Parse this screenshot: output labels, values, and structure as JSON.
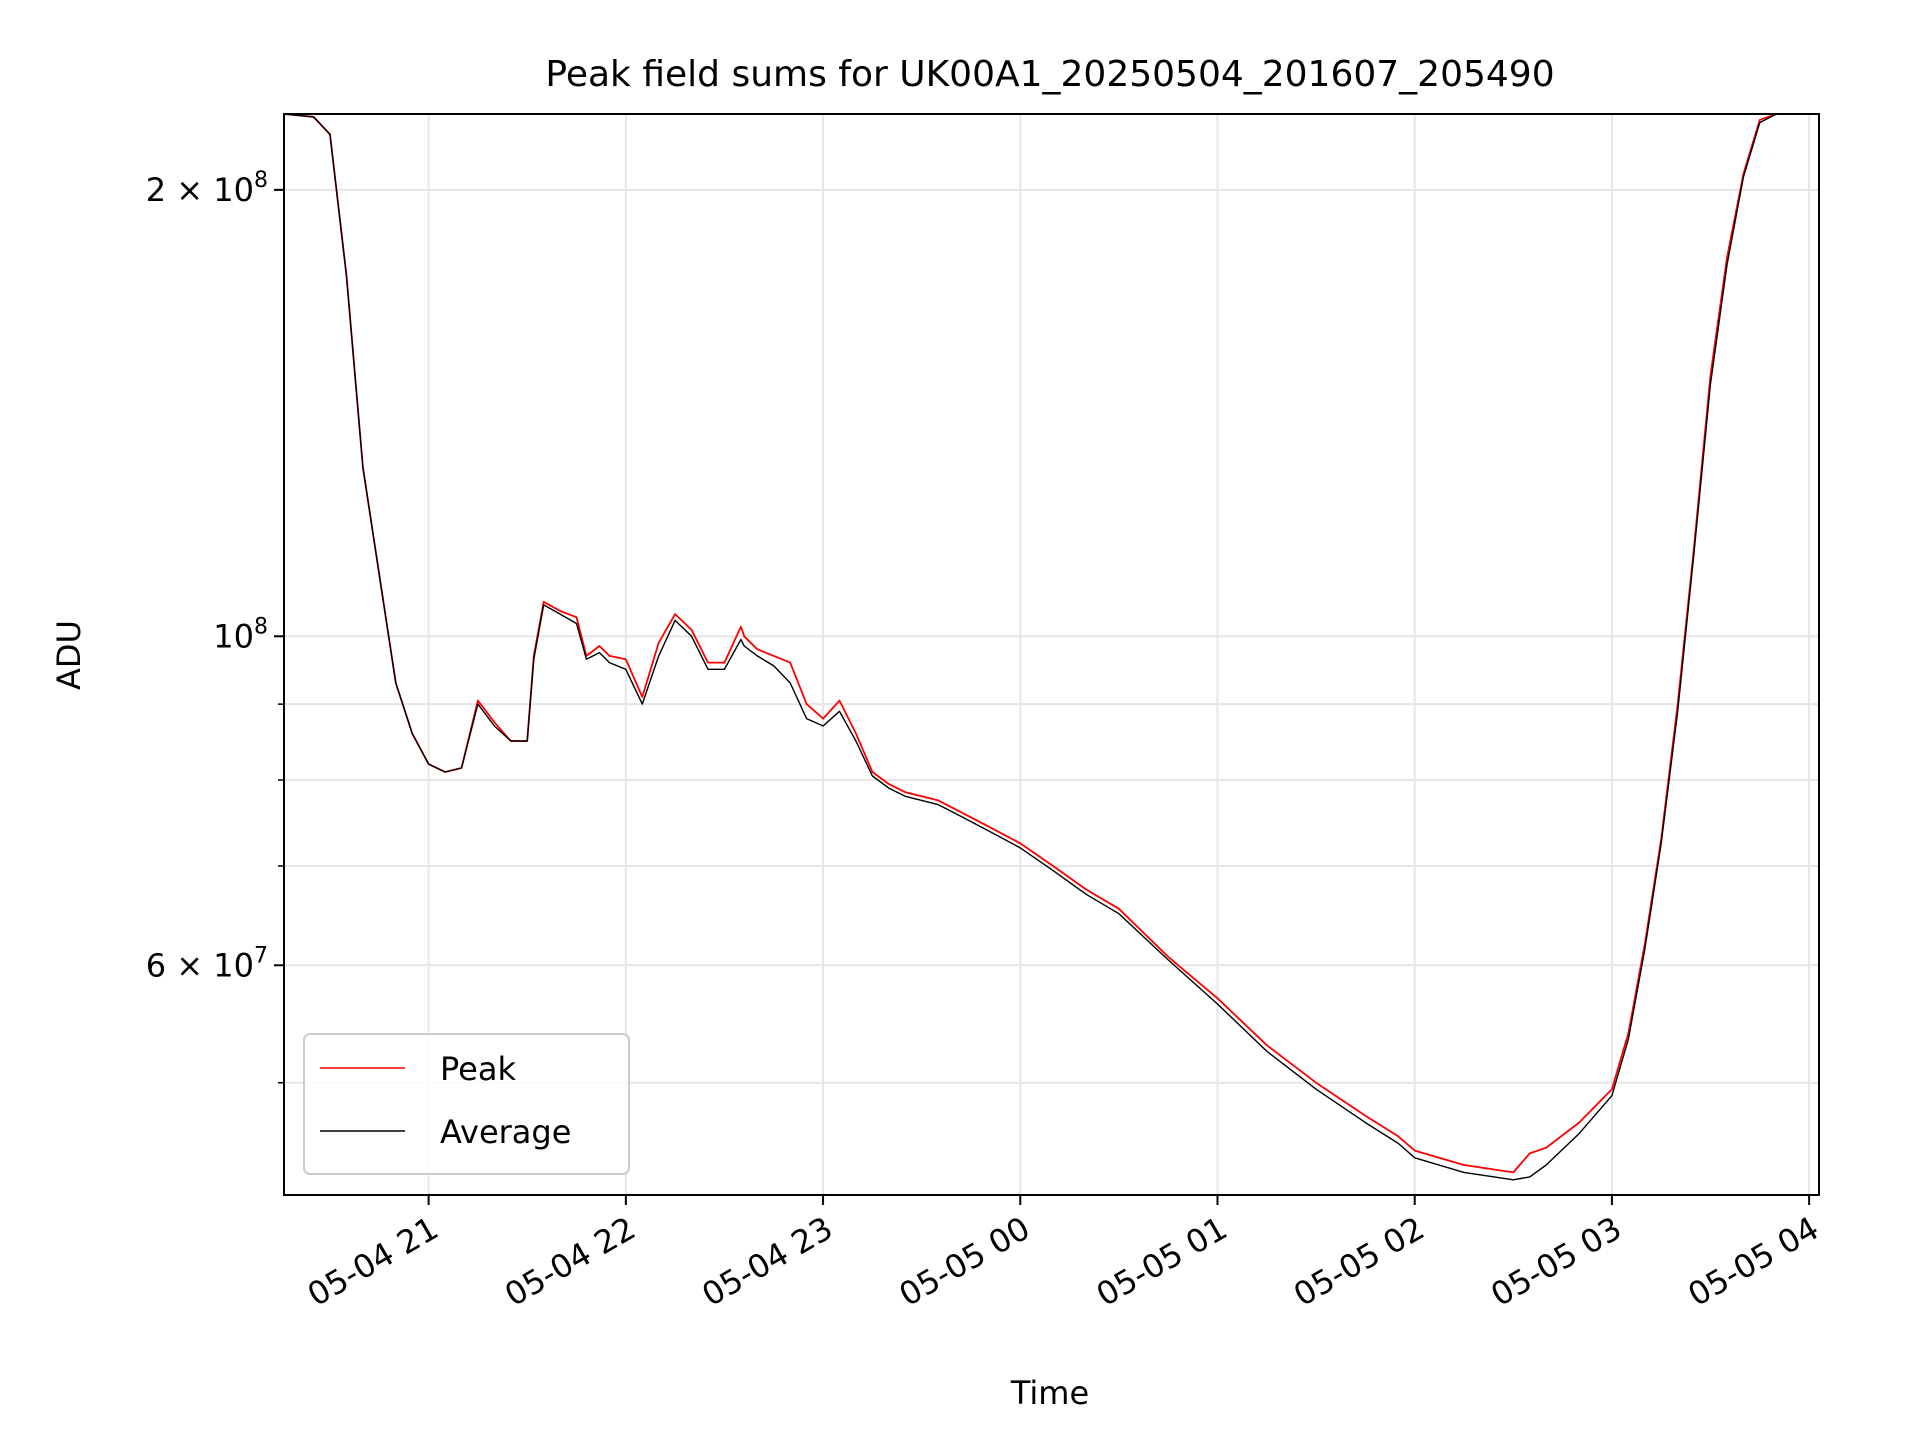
{
  "chart_data": {
    "type": "line",
    "title": "Peak field sums for UK00A1_20250504_201607_205490",
    "xlabel": "Time",
    "ylabel": "ADU",
    "y_scale": "log",
    "xlim": [
      "2025-05-04 20:16",
      "2025-05-05 04:03"
    ],
    "ylim": [
      42000000,
      225000000
    ],
    "grid": true,
    "legend_position": "lower-left",
    "x_ticks": [
      {
        "t": "2025-05-04 21:00",
        "label": "05-04 21"
      },
      {
        "t": "2025-05-04 22:00",
        "label": "05-04 22"
      },
      {
        "t": "2025-05-04 23:00",
        "label": "05-04 23"
      },
      {
        "t": "2025-05-05 00:00",
        "label": "05-05 00"
      },
      {
        "t": "2025-05-05 01:00",
        "label": "05-05 01"
      },
      {
        "t": "2025-05-05 02:00",
        "label": "05-05 02"
      },
      {
        "t": "2025-05-05 03:00",
        "label": "05-05 03"
      },
      {
        "t": "2025-05-05 04:00",
        "label": "05-05 04"
      }
    ],
    "y_major_ticks": [
      {
        "value": 60000000,
        "base": "6 × 10",
        "exp": "7"
      },
      {
        "value": 100000000,
        "base": "10",
        "exp": "8"
      },
      {
        "value": 200000000,
        "base": "2 × 10",
        "exp": "8"
      }
    ],
    "y_minor_grid": [
      50000000,
      70000000,
      80000000,
      90000000
    ],
    "series": [
      {
        "name": "Peak",
        "color": "#ff0000",
        "x": [
          "2025-05-04 20:16",
          "2025-05-04 20:25",
          "2025-05-04 20:30",
          "2025-05-04 20:35",
          "2025-05-04 20:40",
          "2025-05-04 20:45",
          "2025-05-04 20:50",
          "2025-05-04 20:55",
          "2025-05-04 21:00",
          "2025-05-04 21:05",
          "2025-05-04 21:10",
          "2025-05-04 21:15",
          "2025-05-04 21:20",
          "2025-05-04 21:25",
          "2025-05-04 21:30",
          "2025-05-04 21:32",
          "2025-05-04 21:35",
          "2025-05-04 21:40",
          "2025-05-04 21:45",
          "2025-05-04 21:48",
          "2025-05-04 21:52",
          "2025-05-04 21:55",
          "2025-05-04 22:00",
          "2025-05-04 22:05",
          "2025-05-04 22:10",
          "2025-05-04 22:15",
          "2025-05-04 22:20",
          "2025-05-04 22:25",
          "2025-05-04 22:30",
          "2025-05-04 22:35",
          "2025-05-04 22:36",
          "2025-05-04 22:40",
          "2025-05-04 22:45",
          "2025-05-04 22:50",
          "2025-05-04 22:55",
          "2025-05-04 23:00",
          "2025-05-04 23:05",
          "2025-05-04 23:10",
          "2025-05-04 23:15",
          "2025-05-04 23:20",
          "2025-05-04 23:25",
          "2025-05-04 23:30",
          "2025-05-04 23:35",
          "2025-05-04 23:40",
          "2025-05-04 23:50",
          "2025-05-05 00:00",
          "2025-05-05 00:10",
          "2025-05-05 00:20",
          "2025-05-05 00:30",
          "2025-05-05 00:45",
          "2025-05-05 01:00",
          "2025-05-05 01:15",
          "2025-05-05 01:30",
          "2025-05-05 01:45",
          "2025-05-05 01:55",
          "2025-05-05 02:00",
          "2025-05-05 02:15",
          "2025-05-05 02:30",
          "2025-05-05 02:35",
          "2025-05-05 02:40",
          "2025-05-05 02:50",
          "2025-05-05 03:00",
          "2025-05-05 03:05",
          "2025-05-05 03:10",
          "2025-05-05 03:15",
          "2025-05-05 03:20",
          "2025-05-05 03:25",
          "2025-05-05 03:30",
          "2025-05-05 03:35",
          "2025-05-05 03:40",
          "2025-05-05 03:45",
          "2025-05-05 03:50",
          "2025-05-05 04:03"
        ],
        "y": [
          225000000,
          224000000,
          218000000,
          175000000,
          130000000,
          110000000,
          93000000,
          86000000,
          82000000,
          81000000,
          81500000,
          90500000,
          87500000,
          85000000,
          85000000,
          97000000,
          105500000,
          104000000,
          103000000,
          97000000,
          98500000,
          97000000,
          96500000,
          91000000,
          99000000,
          103500000,
          101000000,
          96000000,
          96000000,
          101500000,
          100000000,
          98000000,
          97000000,
          96000000,
          90000000,
          88000000,
          90500000,
          86000000,
          81000000,
          79500000,
          78500000,
          78000000,
          77500000,
          76500000,
          74500000,
          72500000,
          70000000,
          67500000,
          65500000,
          60800000,
          57000000,
          53000000,
          50000000,
          47500000,
          46000000,
          45000000,
          44000000,
          43500000,
          44800000,
          45200000,
          47000000,
          49500000,
          54000000,
          62000000,
          73000000,
          90000000,
          115000000,
          150000000,
          180000000,
          205000000,
          223000000,
          225000000,
          225000000
        ]
      },
      {
        "name": "Average",
        "color": "#000000",
        "x": [
          "2025-05-04 20:16",
          "2025-05-04 20:25",
          "2025-05-04 20:30",
          "2025-05-04 20:35",
          "2025-05-04 20:40",
          "2025-05-04 20:45",
          "2025-05-04 20:50",
          "2025-05-04 20:55",
          "2025-05-04 21:00",
          "2025-05-04 21:05",
          "2025-05-04 21:10",
          "2025-05-04 21:15",
          "2025-05-04 21:20",
          "2025-05-04 21:25",
          "2025-05-04 21:30",
          "2025-05-04 21:32",
          "2025-05-04 21:35",
          "2025-05-04 21:40",
          "2025-05-04 21:45",
          "2025-05-04 21:48",
          "2025-05-04 21:52",
          "2025-05-04 21:55",
          "2025-05-04 22:00",
          "2025-05-04 22:05",
          "2025-05-04 22:10",
          "2025-05-04 22:15",
          "2025-05-04 22:20",
          "2025-05-04 22:25",
          "2025-05-04 22:30",
          "2025-05-04 22:35",
          "2025-05-04 22:36",
          "2025-05-04 22:40",
          "2025-05-04 22:45",
          "2025-05-04 22:50",
          "2025-05-04 22:55",
          "2025-05-04 23:00",
          "2025-05-04 23:05",
          "2025-05-04 23:10",
          "2025-05-04 23:15",
          "2025-05-04 23:20",
          "2025-05-04 23:25",
          "2025-05-04 23:30",
          "2025-05-04 23:35",
          "2025-05-04 23:40",
          "2025-05-04 23:50",
          "2025-05-05 00:00",
          "2025-05-05 00:10",
          "2025-05-05 00:20",
          "2025-05-05 00:30",
          "2025-05-05 00:45",
          "2025-05-05 01:00",
          "2025-05-05 01:15",
          "2025-05-05 01:30",
          "2025-05-05 01:45",
          "2025-05-05 01:55",
          "2025-05-05 02:00",
          "2025-05-05 02:15",
          "2025-05-05 02:30",
          "2025-05-05 02:35",
          "2025-05-05 02:40",
          "2025-05-05 02:50",
          "2025-05-05 03:00",
          "2025-05-05 03:05",
          "2025-05-05 03:10",
          "2025-05-05 03:15",
          "2025-05-05 03:20",
          "2025-05-05 03:25",
          "2025-05-05 03:30",
          "2025-05-05 03:35",
          "2025-05-05 03:40",
          "2025-05-05 03:45",
          "2025-05-05 03:50",
          "2025-05-05 04:03"
        ],
        "y": [
          225000000,
          224000000,
          218000000,
          175000000,
          130000000,
          110000000,
          93000000,
          86000000,
          82000000,
          81000000,
          81500000,
          90000000,
          87000000,
          85000000,
          85000000,
          96500000,
          105000000,
          103500000,
          102000000,
          96500000,
          97500000,
          96000000,
          95000000,
          90000000,
          97000000,
          102500000,
          100000000,
          95000000,
          95000000,
          99500000,
          98500000,
          97000000,
          95500000,
          93000000,
          88000000,
          87000000,
          89000000,
          85000000,
          80500000,
          79000000,
          78000000,
          77500000,
          77000000,
          76000000,
          74000000,
          72000000,
          69500000,
          67000000,
          65000000,
          60500000,
          56500000,
          52500000,
          49500000,
          47000000,
          45500000,
          44500000,
          43500000,
          43000000,
          43200000,
          44000000,
          46200000,
          49000000,
          53500000,
          61500000,
          72500000,
          89000000,
          114000000,
          148000000,
          178000000,
          204000000,
          222000000,
          225000000,
          225000000
        ]
      }
    ]
  }
}
